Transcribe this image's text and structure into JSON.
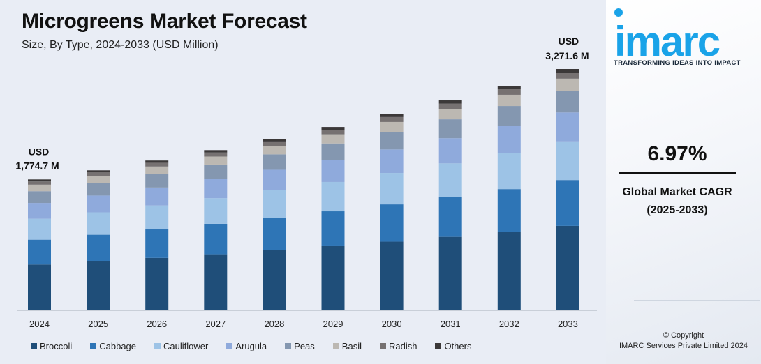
{
  "title": "Microgreens Market Forecast",
  "subtitle": "Size, By Type, 2024-2033 (USD Million)",
  "annotations": {
    "first_prefix": "USD",
    "first_value": "1,774.7 M",
    "last_prefix": "USD",
    "last_value": "3,271.6 M"
  },
  "brand": {
    "logo": "imarc",
    "tagline": "TRANSFORMING IDEAS INTO IMPACT",
    "cagr_value": "6.97%",
    "cagr_label_line1": "Global Market CAGR",
    "cagr_label_line2": "(2025-2033)",
    "copyright_line1": "© Copyright",
    "copyright_line2": "IMARC Services Private Limited 2024"
  },
  "colors": {
    "accent": "#1aa3e8",
    "background": "#e9edf5"
  },
  "chart_data": {
    "type": "bar",
    "stacked": true,
    "categories": [
      "2024",
      "2025",
      "2026",
      "2027",
      "2028",
      "2029",
      "2030",
      "2031",
      "2032",
      "2033"
    ],
    "totals": [
      1774.7,
      1898,
      2031,
      2172,
      2324,
      2486,
      2660,
      2846,
      3044,
      3271.6
    ],
    "grid": false,
    "legend_position": "bottom",
    "series": [
      {
        "name": "Broccoli",
        "color": "#1f4e79",
        "share": 0.35
      },
      {
        "name": "Cabbage",
        "color": "#2e75b6",
        "share": 0.19
      },
      {
        "name": "Cauliflower",
        "color": "#9dc3e6",
        "share": 0.16
      },
      {
        "name": "Arugula",
        "color": "#8faadc",
        "share": 0.12
      },
      {
        "name": "Peas",
        "color": "#8497b0",
        "share": 0.09
      },
      {
        "name": "Basil",
        "color": "#bcb8b2",
        "share": 0.05
      },
      {
        "name": "Radish",
        "color": "#767171",
        "share": 0.025
      },
      {
        "name": "Others",
        "color": "#3b3838",
        "share": 0.015
      }
    ]
  }
}
